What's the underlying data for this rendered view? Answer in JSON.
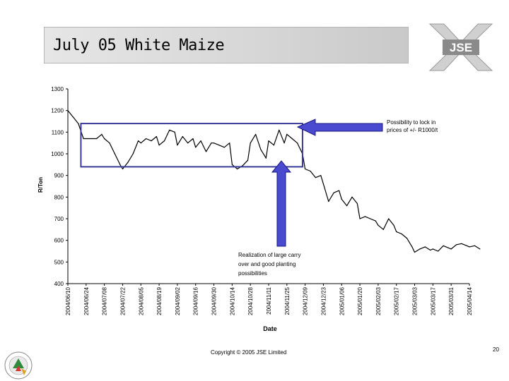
{
  "slide": {
    "title": "July 05 White Maize",
    "copyright": "Copyright © 2005 JSE Limited",
    "page_number": "20",
    "logo_text": "JSE"
  },
  "annotations": {
    "lock_in": "Possibility to lock in prices of +/- R1000/t",
    "carry_over": "Realization of large carry over and good planting possibilities"
  },
  "colors": {
    "line": "#000000",
    "arrow_fill": "#4a4ad0",
    "arrow_stroke": "#1a1a80",
    "box": "#3b3b9a"
  },
  "chart_data": {
    "type": "line",
    "title": "",
    "xlabel": "Date",
    "ylabel": "R/Ton",
    "ylim": [
      400,
      1300
    ],
    "yticks": [
      400,
      500,
      600,
      700,
      800,
      900,
      1000,
      1100,
      1200,
      1300
    ],
    "xticks": [
      "2004/06/10",
      "2004/06/24",
      "2004/07/08",
      "2004/07/22",
      "2004/08/05",
      "2004/08/19",
      "2004/09/02",
      "2004/09/16",
      "2004/09/30",
      "2004/10/14",
      "2004/10/28",
      "2004/11/11",
      "2004/11/25",
      "2004/12/09",
      "2004/12/23",
      "2005/01/06",
      "2005/01/20",
      "2005/02/03",
      "2005/02/17",
      "2005/03/03",
      "2005/03/17",
      "2005/03/31",
      "2005/04/14"
    ],
    "grid": false,
    "series": [
      {
        "name": "",
        "x": [
          "2004/06/10",
          "2004/06/14",
          "2004/06/18",
          "2004/06/22",
          "2004/06/24",
          "2004/06/28",
          "2004/07/02",
          "2004/07/06",
          "2004/07/08",
          "2004/07/12",
          "2004/07/16",
          "2004/07/20",
          "2004/07/22",
          "2004/07/26",
          "2004/07/30",
          "2004/08/03",
          "2004/08/05",
          "2004/08/09",
          "2004/08/13",
          "2004/08/17",
          "2004/08/19",
          "2004/08/23",
          "2004/08/27",
          "2004/08/31",
          "2004/09/02",
          "2004/09/06",
          "2004/09/10",
          "2004/09/14",
          "2004/09/16",
          "2004/09/20",
          "2004/09/24",
          "2004/09/28",
          "2004/09/30",
          "2004/10/04",
          "2004/10/08",
          "2004/10/12",
          "2004/10/14",
          "2004/10/18",
          "2004/10/22",
          "2004/10/26",
          "2004/10/28",
          "2004/11/01",
          "2004/11/05",
          "2004/11/09",
          "2004/11/11",
          "2004/11/15",
          "2004/11/19",
          "2004/11/23",
          "2004/11/25",
          "2004/11/29",
          "2004/12/03",
          "2004/12/07",
          "2004/12/09",
          "2004/12/13",
          "2004/12/17",
          "2004/12/21",
          "2004/12/23",
          "2004/12/27",
          "2004/12/31",
          "2005/01/04",
          "2005/01/06",
          "2005/01/10",
          "2005/01/14",
          "2005/01/18",
          "2005/01/20",
          "2005/01/24",
          "2005/01/28",
          "2005/02/01",
          "2005/02/03",
          "2005/02/07",
          "2005/02/11",
          "2005/02/15",
          "2005/02/17",
          "2005/02/21",
          "2005/02/25",
          "2005/03/01",
          "2005/03/03",
          "2005/03/07",
          "2005/03/11",
          "2005/03/15",
          "2005/03/17",
          "2005/03/21",
          "2005/03/25",
          "2005/03/29",
          "2005/03/31",
          "2005/04/04",
          "2005/04/08",
          "2005/04/12",
          "2005/04/14",
          "2005/04/18",
          "2005/04/22"
        ],
        "y": [
          1200,
          1170,
          1140,
          1070,
          1070,
          1070,
          1070,
          1090,
          1070,
          1050,
          1000,
          950,
          930,
          960,
          1000,
          1060,
          1050,
          1070,
          1060,
          1080,
          1040,
          1060,
          1110,
          1100,
          1040,
          1080,
          1050,
          1070,
          1030,
          1060,
          1010,
          1050,
          1050,
          1040,
          1030,
          1050,
          950,
          930,
          945,
          970,
          1050,
          1090,
          1020,
          980,
          1060,
          1040,
          1110,
          1050,
          1090,
          1070,
          1050,
          1000,
          930,
          920,
          890,
          900,
          860,
          780,
          820,
          830,
          790,
          760,
          800,
          770,
          700,
          710,
          700,
          690,
          670,
          650,
          700,
          670,
          640,
          630,
          610,
          570,
          545,
          560,
          570,
          555,
          560,
          550,
          575,
          565,
          560,
          580,
          585,
          575,
          570,
          575,
          560
        ]
      }
    ]
  }
}
